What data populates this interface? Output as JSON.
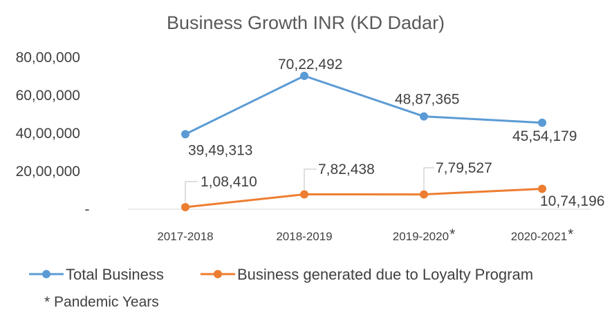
{
  "chart_data": {
    "type": "line",
    "title": "Business Growth INR (KD Dadar)",
    "categories": [
      "2017-2018",
      "2018-2019",
      "2019-2020",
      "2020-2021"
    ],
    "category_markers": [
      "",
      "",
      "*",
      "*"
    ],
    "y_ticks": [
      "-",
      "20,00,000",
      "40,00,000",
      "60,00,000",
      "80,00,000"
    ],
    "ylim": [
      0,
      8000000
    ],
    "grid": false,
    "legend_position": "bottom",
    "series": [
      {
        "name": "Total Business",
        "color": "#5B9BD5",
        "values": [
          3949313,
          7022492,
          4887365,
          4554179
        ],
        "labels": [
          "39,49,313",
          "70,22,492",
          "48,87,365",
          "45,54,179"
        ]
      },
      {
        "name": "Business generated due to Loyalty Program",
        "color": "#ED7D31",
        "values": [
          108410,
          782438,
          779527,
          1074196
        ],
        "labels": [
          "1,08,410",
          "7,82,438",
          "7,79,527",
          "10,74,196"
        ]
      }
    ],
    "footnote": "* Pandemic Years"
  }
}
